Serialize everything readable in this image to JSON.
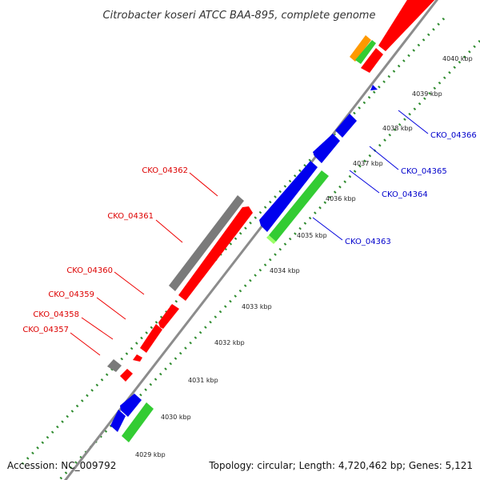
{
  "title": "Citrobacter koseri ATCC BAA-895, complete genome",
  "footer": {
    "accession": "Accession: NC_009792",
    "stats": "Topology: circular; Length: 4,720,462 bp; Genes: 5,121"
  },
  "colors": {
    "backbone": "#8c8c8c",
    "gc_dots": "#2e8b2e",
    "red": "#ff0000",
    "blue": "#0000ee",
    "gray": "#7a7a7a",
    "green": "#33cc33",
    "orange": "#ff9900",
    "label_red": "#dd0000",
    "label_blue": "#0000cc"
  },
  "ticks": [
    {
      "label": "4029 kbp"
    },
    {
      "label": "4030 kbp"
    },
    {
      "label": "4031 kbp"
    },
    {
      "label": "4032 kbp"
    },
    {
      "label": "4033 kbp"
    },
    {
      "label": "4034 kbp"
    },
    {
      "label": "4035 kbp"
    },
    {
      "label": "4036 kbp"
    },
    {
      "label": "4037 kbp"
    },
    {
      "label": "4038 kbp"
    },
    {
      "label": "4039 kbp"
    },
    {
      "label": "4040 kbp"
    }
  ],
  "gene_labels": {
    "top": [
      {
        "name": "CKO_04362"
      },
      {
        "name": "CKO_04361"
      },
      {
        "name": "CKO_04360"
      },
      {
        "name": "CKO_04359"
      },
      {
        "name": "CKO_04358"
      },
      {
        "name": "CKO_04357"
      }
    ],
    "bottom": [
      {
        "name": "CKO_04366"
      },
      {
        "name": "CKO_04365"
      },
      {
        "name": "CKO_04364"
      },
      {
        "name": "CKO_04363"
      }
    ]
  }
}
